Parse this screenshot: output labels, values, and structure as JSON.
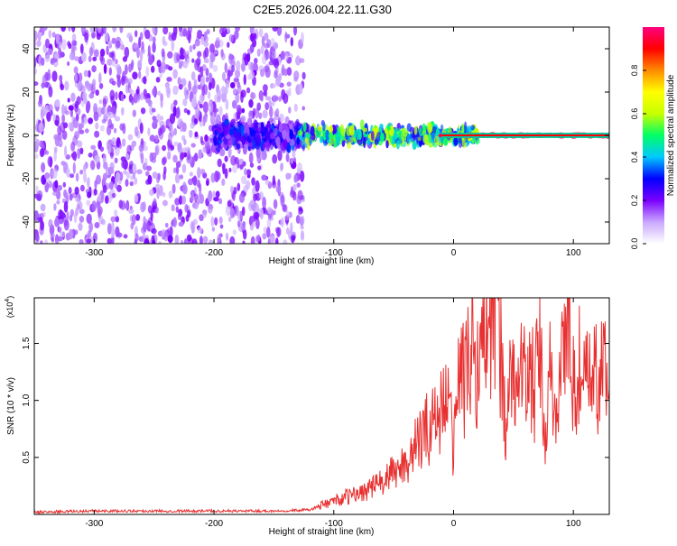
{
  "figure_title": "C2E5.2026.004.22.11.G30",
  "chart_data": [
    {
      "type": "heatmap",
      "title": "",
      "xlabel": "Height of straight line (km)",
      "ylabel": "Frequency (Hz)",
      "xlim": [
        -350,
        130
      ],
      "ylim": [
        -50,
        50
      ],
      "x_ticks": [
        -300,
        -200,
        -100,
        0,
        100
      ],
      "y_ticks": [
        -40,
        -20,
        0,
        20,
        40
      ],
      "colorbar": {
        "label": "Normalized spectral amplitude",
        "range": [
          0,
          1
        ],
        "ticks": [
          "0.0",
          "0.2",
          "0.4",
          "0.6",
          "0.8"
        ],
        "colors": [
          "#ffffff",
          "#c9a7ff",
          "#7a00ff",
          "#0000ff",
          "#00c8ff",
          "#00ff66",
          "#c8ff00",
          "#ffff00",
          "#ff8c00",
          "#ff0000",
          "#ff0080"
        ]
      },
      "regions": [
        {
          "name": "scattered noise",
          "x": [
            -350,
            -125
          ],
          "freq": [
            -50,
            50
          ],
          "amplitude": 0.15
        },
        {
          "name": "noisy band",
          "x": [
            -200,
            -125
          ],
          "freq": [
            -8,
            8
          ],
          "amplitude": 0.25
        },
        {
          "name": "signal band",
          "x": [
            -130,
            20
          ],
          "freq": [
            -6,
            6
          ],
          "amplitude": 0.45
        },
        {
          "name": "steady tone",
          "x": [
            -10,
            130
          ],
          "freq": [
            0,
            0
          ],
          "amplitude": 0.95
        }
      ]
    },
    {
      "type": "line",
      "title": "",
      "xlabel": "Height of straight line (km)",
      "ylabel": "SNR (10 * v/v)",
      "y_scale_label": "(x10",
      "y_scale_exponent": "4",
      "xlim": [
        -350,
        130
      ],
      "ylim": [
        0,
        1.9
      ],
      "x_ticks": [
        -300,
        -200,
        -100,
        0,
        100
      ],
      "y_ticks": [
        "0.5",
        "1.0",
        "1.5"
      ],
      "series": [
        {
          "color": "#e83030",
          "x": [
            -350,
            -300,
            -250,
            -200,
            -160,
            -150,
            -120,
            -100,
            -80,
            -60,
            -40,
            -30,
            -20,
            -12,
            -8,
            -3,
            0,
            5,
            10,
            15,
            20,
            25,
            30,
            33,
            36,
            40,
            44,
            48,
            52,
            56,
            60,
            64,
            68,
            72,
            76,
            80,
            84,
            88,
            92,
            96,
            100,
            105,
            110,
            115,
            120,
            125,
            130
          ],
          "values": [
            0.02,
            0.03,
            0.03,
            0.03,
            0.03,
            0.03,
            0.04,
            0.12,
            0.18,
            0.28,
            0.45,
            0.62,
            0.78,
            0.9,
            1.0,
            0.9,
            0.55,
            1.35,
            1.15,
            1.5,
            1.3,
            1.55,
            1.72,
            1.9,
            1.8,
            1.45,
            0.65,
            1.2,
            1.1,
            1.4,
            1.1,
            1.25,
            1.05,
            1.5,
            0.55,
            1.25,
            0.8,
            1.2,
            1.55,
            1.68,
            1.1,
            1.3,
            1.1,
            1.25,
            1.15,
            1.3,
            1.1
          ]
        }
      ]
    }
  ]
}
